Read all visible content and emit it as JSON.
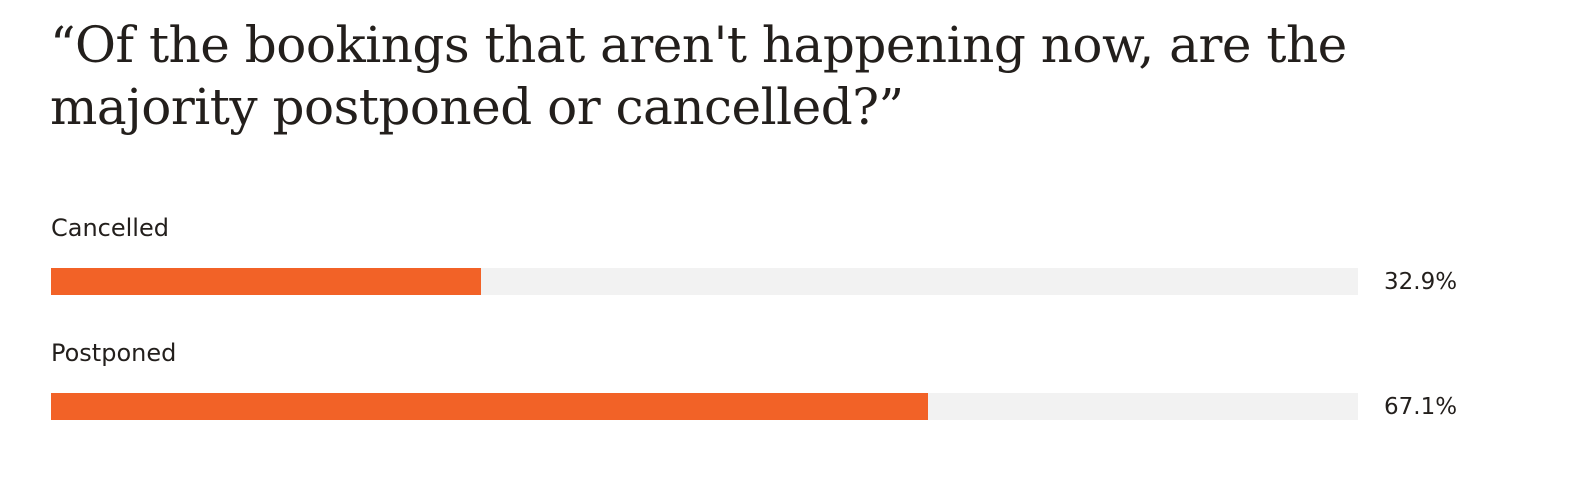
{
  "colors": {
    "bar_fill": "#f26227",
    "bar_track": "#f2f2f2",
    "text": "#231f1c"
  },
  "chart_data": {
    "type": "bar",
    "orientation": "horizontal",
    "title": "“Of the bookings that aren't happening now, are the majority postponed or cancelled?”",
    "categories": [
      "Cancelled",
      "Postponed"
    ],
    "values": [
      32.9,
      67.1
    ],
    "value_labels": [
      "32.9%",
      "67.1%"
    ],
    "unit": "%",
    "xlim": [
      0,
      100
    ],
    "grid": false,
    "legend": "none"
  }
}
